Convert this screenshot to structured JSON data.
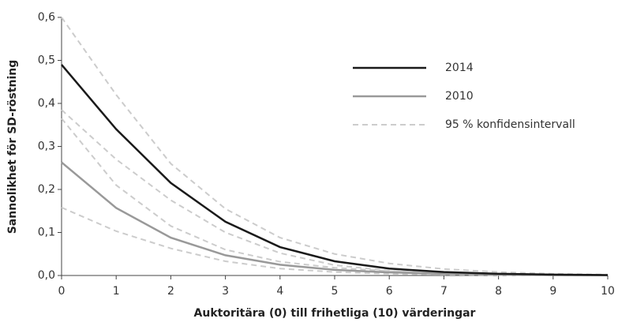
{
  "chart_data": {
    "type": "line",
    "xlabel": "Auktoritära (0) till frihetliga (10) värderingar",
    "ylabel": "Sannolikhet för SD-röstning",
    "x": [
      0,
      1,
      2,
      3,
      4,
      5,
      6,
      7,
      8,
      9,
      10
    ],
    "series": [
      {
        "name": "2014",
        "color": "#1a1a1a",
        "dash": false,
        "values": [
          0.49,
          0.34,
          0.215,
          0.125,
          0.066,
          0.033,
          0.016,
          0.008,
          0.004,
          0.002,
          0.001
        ]
      },
      {
        "name": "2010",
        "color": "#999999",
        "dash": false,
        "values": [
          0.263,
          0.157,
          0.088,
          0.047,
          0.025,
          0.013,
          0.007,
          0.004,
          0.002,
          0.001,
          0.0005
        ]
      },
      {
        "name": "95 % konfidensintervall",
        "color": "#cccccc",
        "dash": true,
        "values": [
          0.6,
          0.42,
          0.26,
          0.155,
          0.088,
          0.05,
          0.028,
          0.015,
          0.008,
          0.004,
          0.002
        ]
      },
      {
        "name": "95 % konfidensintervall",
        "color": "#cccccc",
        "dash": true,
        "values": [
          0.385,
          0.27,
          0.175,
          0.1,
          0.052,
          0.024,
          0.011,
          0.005,
          0.002,
          0.001,
          0.0005
        ]
      },
      {
        "name": "95 % konfidensintervall",
        "color": "#cccccc",
        "dash": true,
        "values": [
          0.365,
          0.21,
          0.115,
          0.06,
          0.032,
          0.018,
          0.01,
          0.005,
          0.003,
          0.002,
          0.001
        ]
      },
      {
        "name": "95 % konfidensintervall",
        "color": "#cccccc",
        "dash": true,
        "values": [
          0.158,
          0.103,
          0.063,
          0.033,
          0.016,
          0.008,
          0.004,
          0.002,
          0.001,
          0.0005,
          0.0002
        ]
      }
    ],
    "xlim": [
      0,
      10
    ],
    "xticks": [
      0,
      1,
      2,
      3,
      4,
      5,
      6,
      7,
      8,
      9,
      10
    ],
    "ylim": [
      0,
      0.6
    ],
    "yticks": [
      {
        "value": 0,
        "label": "0,0"
      },
      {
        "value": 0.1,
        "label": "0,1"
      },
      {
        "value": 0.2,
        "label": "0,2"
      },
      {
        "value": 0.3,
        "label": "0,3"
      },
      {
        "value": 0.4,
        "label": "0,4"
      },
      {
        "value": 0.5,
        "label": "0,5"
      },
      {
        "value": 0.6,
        "label": "0,6"
      }
    ],
    "grid": false,
    "legend": "upper right"
  }
}
